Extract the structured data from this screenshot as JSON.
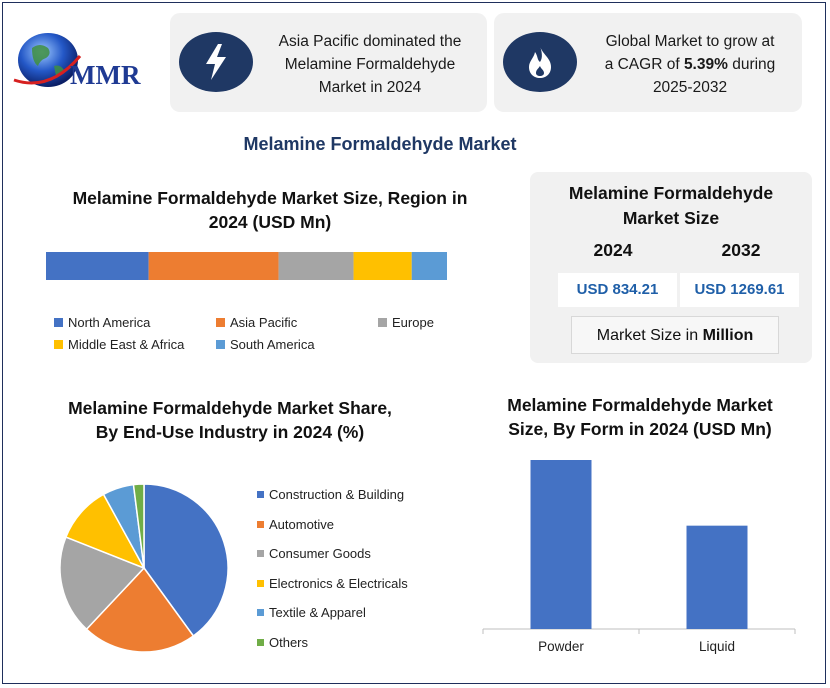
{
  "logo": {
    "text": "MMR"
  },
  "info_cards": [
    {
      "icon": "lightning-icon",
      "lines": [
        "Asia Pacific dominated the",
        "Melamine Formaldehyde",
        "Market in 2024"
      ]
    },
    {
      "icon": "flame-icon",
      "line1": "Global Market to grow at",
      "line2_prefix": "a CAGR of ",
      "line2_bold": "5.39%",
      "line2_suffix": " during",
      "line3": "2025-2032"
    }
  ],
  "main_title": "Melamine Formaldehyde Market",
  "colors": {
    "north_america": "#4472c4",
    "asia_pacific": "#ed7d31",
    "europe": "#a5a5a5",
    "middle_east_africa": "#ffc000",
    "south_america": "#5b9bd5",
    "others": "#70ad47",
    "navy": "#1f3864"
  },
  "market_size": {
    "title_line1": "Melamine Formaldehyde",
    "title_line2": "Market Size",
    "year1": "2024",
    "year2": "2032",
    "value1": "USD 834.21",
    "value2": "USD 1269.61",
    "footer_prefix": "Market Size in ",
    "footer_bold": "Million"
  },
  "chart_data": [
    {
      "type": "bar",
      "stacked": true,
      "orientation": "horizontal",
      "title": "Melamine Formaldehyde Market Size, Region in 2024 (USD Mn)",
      "title_lines": [
        "Melamine Formaldehyde Market Size, Region in",
        "2024 (USD Mn)"
      ],
      "series": [
        {
          "name": "North America",
          "values": [
            25.6
          ]
        },
        {
          "name": "Asia Pacific",
          "values": [
            32.4
          ]
        },
        {
          "name": "Europe",
          "values": [
            18.7
          ]
        },
        {
          "name": "Middle East & Africa",
          "values": [
            14.5
          ]
        },
        {
          "name": "South America",
          "values": [
            8.8
          ]
        }
      ],
      "legend": "bottom"
    },
    {
      "type": "pie",
      "title": "Melamine Formaldehyde Market Share, By End-Use Industry in 2024 (%)",
      "title_lines": [
        "Melamine Formaldehyde Market Share,",
        "By End-Use Industry in 2024 (%)"
      ],
      "categories": [
        "Construction & Building",
        "Automotive",
        "Consumer Goods",
        "Electronics & Electricals",
        "Textile & Apparel",
        "Others"
      ],
      "values": [
        40,
        22,
        19,
        11,
        6,
        2
      ],
      "legend": "right"
    },
    {
      "type": "bar",
      "title": "Melamine Formaldehyde Market Size, By Form in 2024 (USD Mn)",
      "title_lines": [
        "Melamine Formaldehyde Market",
        "Size, By Form in 2024 (USD Mn)"
      ],
      "categories": [
        "Powder",
        "Liquid"
      ],
      "values": [
        520,
        310
      ],
      "ylim": [
        0,
        600
      ],
      "grid": false
    }
  ]
}
